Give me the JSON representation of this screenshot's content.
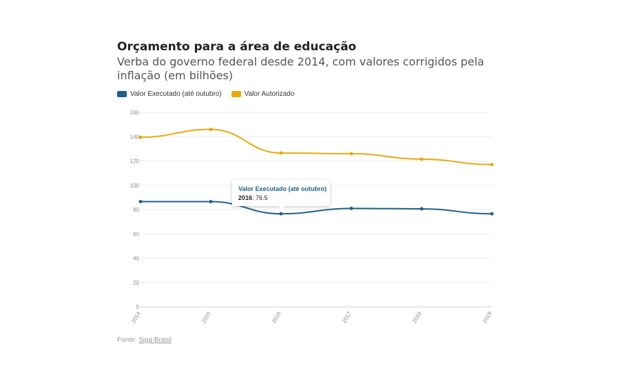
{
  "header": {
    "title": "Orçamento para a área de educação",
    "subtitle": "Verba do governo federal desde 2014, com valores corrigidos pela inflação (em bilhões)"
  },
  "legend": [
    {
      "label": "Valor Executado (até outubro)",
      "color": "#1f5f8b"
    },
    {
      "label": "Valor Autorizado",
      "color": "#e8a90c"
    }
  ],
  "tooltip": {
    "title": "Valor Executado (até outubro)",
    "year": "2016",
    "value": "76.5"
  },
  "footer": {
    "prefix": "Fonte: ",
    "source": "Siga Brasil"
  },
  "chart_data": {
    "type": "line",
    "title": "Orçamento para a área de educação",
    "xlabel": "",
    "ylabel": "",
    "x": [
      "2014",
      "2015",
      "2016",
      "2017",
      "2018",
      "2019"
    ],
    "ylim": [
      0,
      160
    ],
    "yticks": [
      0,
      20,
      40,
      60,
      80,
      100,
      120,
      140,
      160
    ],
    "grid": true,
    "legend_position": "top-left",
    "series": [
      {
        "name": "Valor Executado (até outubro)",
        "color": "#1f5f8b",
        "values": [
          86.5,
          86.5,
          76.5,
          80.9,
          80.6,
          76.5
        ]
      },
      {
        "name": "Valor Autorizado",
        "color": "#e8a90c",
        "values": [
          139.5,
          146,
          126.5,
          126,
          121.5,
          117
        ]
      }
    ]
  }
}
